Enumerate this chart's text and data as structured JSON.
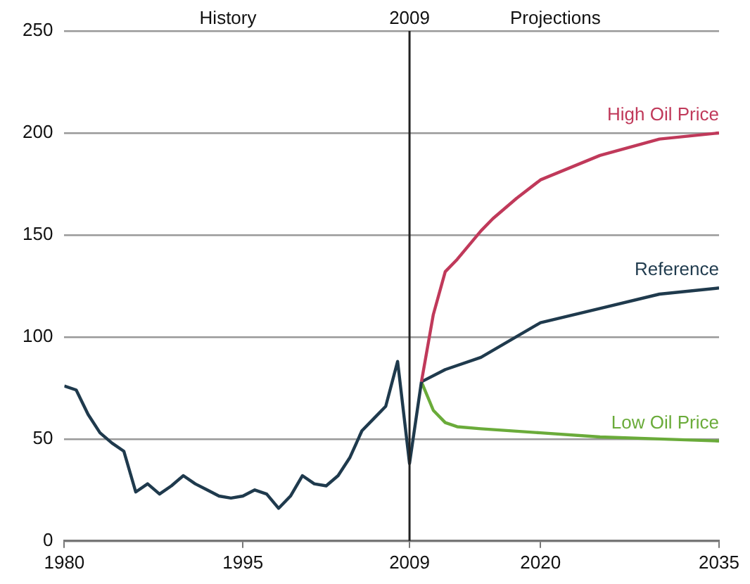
{
  "chart_data": {
    "type": "line",
    "xlim": [
      1980,
      2035
    ],
    "xticks": [
      1980,
      1995,
      2009,
      2020,
      2035
    ],
    "ylim": [
      0,
      250
    ],
    "yticks": [
      0,
      50,
      100,
      150,
      200,
      250
    ],
    "grid": "y",
    "legend": false,
    "marker": "none",
    "line_style": "solid",
    "ref_lines": [
      {
        "axis": "x",
        "value": 2009,
        "label": "2009",
        "color": "#222222"
      }
    ],
    "annotations": [
      "History",
      "Projections"
    ],
    "series": [
      {
        "color": "#1f3a4d",
        "x": [
          1980,
          1981,
          1982,
          1983,
          1984,
          1985,
          1986,
          1987,
          1988,
          1989,
          1990,
          1991,
          1992,
          1993,
          1994,
          1995,
          1996,
          1997,
          1998,
          1999,
          2000,
          2001,
          2002,
          2003,
          2004,
          2005,
          2006,
          2007,
          2008,
          2009,
          2010
        ],
        "values": [
          76,
          74,
          62,
          53,
          48,
          44,
          24,
          28,
          23,
          27,
          32,
          28,
          25,
          22,
          21,
          22,
          25,
          23,
          16,
          22,
          32,
          28,
          27,
          32,
          41,
          54,
          60,
          66,
          88,
          38,
          78
        ]
      },
      {
        "name": "High Oil Price",
        "color": "#c0395a",
        "x": [
          2010,
          2011,
          2012,
          2013,
          2014,
          2015,
          2016,
          2018,
          2020,
          2025,
          2030,
          2035
        ],
        "values": [
          78,
          111,
          132,
          138,
          145,
          152,
          158,
          168,
          177,
          189,
          197,
          200
        ]
      },
      {
        "name": "Reference",
        "color": "#1f3a4d",
        "x": [
          2010,
          2012,
          2015,
          2020,
          2025,
          2030,
          2035
        ],
        "values": [
          78,
          84,
          90,
          107,
          114,
          121,
          124
        ]
      },
      {
        "name": "Low Oil Price",
        "color": "#6aab3a",
        "x": [
          2010,
          2011,
          2012,
          2013,
          2015,
          2020,
          2025,
          2030,
          2035
        ],
        "values": [
          78,
          64,
          58,
          56,
          55,
          53,
          51,
          50,
          49
        ]
      }
    ]
  }
}
